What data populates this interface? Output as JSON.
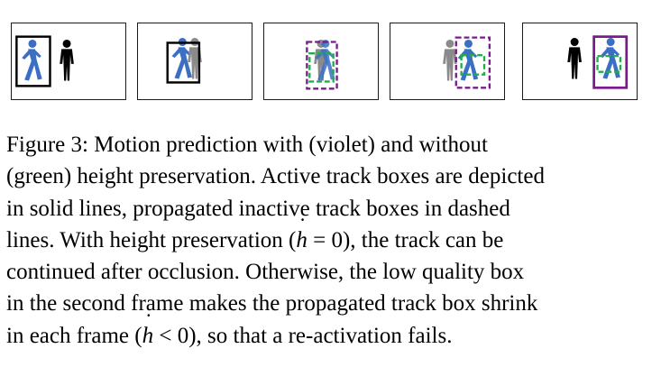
{
  "figure": {
    "label": "Figure 3:",
    "colors": {
      "person_active": "#3a6fc4",
      "person_occluded": "#8a8a8a",
      "person_occluder": "#000000",
      "box_active": "#000000",
      "box_violet": "#7a1a8c",
      "box_green": "#1fae4a"
    },
    "icons": [
      "walking-person-icon",
      "standing-person-icon"
    ]
  },
  "caption": {
    "line1": "Figure 3:  Motion prediction with (violet) and without",
    "line2": "(green) height preservation. Active track boxes are depicted",
    "line3": "in solid lines, propagated inactive track boxes in dashed",
    "line4a": "lines.  With height preservation (",
    "line4_h": "h",
    "line4_eq": " = 0",
    "line4b": "), the track can be",
    "line5": "continued after occlusion.  Otherwise, the low quality box",
    "line6": "in the second frame makes the propagated track box shrink",
    "line7a": "in each frame (",
    "line7_h": "h",
    "line7_lt": " < 0",
    "line7b": "), so that a re-activation fails."
  }
}
